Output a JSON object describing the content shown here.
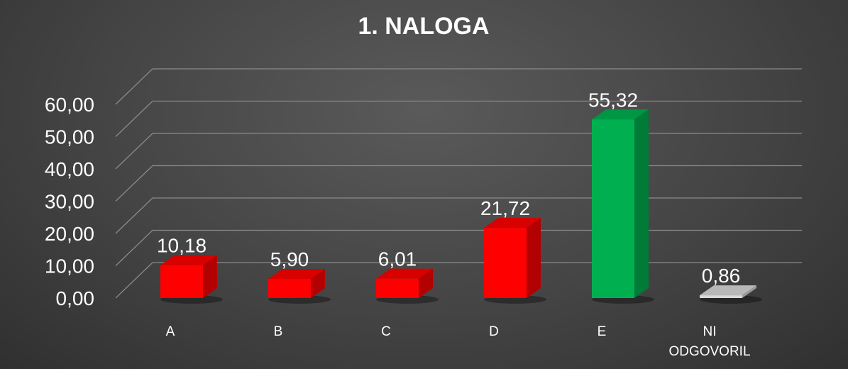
{
  "chart_data": {
    "type": "bar",
    "title": "1. NALOGA",
    "categories": [
      "A",
      "B",
      "C",
      "D",
      "E",
      "NI ODGOVORIL"
    ],
    "category_lines": [
      [
        "A"
      ],
      [
        "B"
      ],
      [
        "C"
      ],
      [
        "D"
      ],
      [
        "E"
      ],
      [
        "NI",
        "ODGOVORIL"
      ]
    ],
    "values": [
      10.18,
      5.9,
      6.01,
      21.72,
      55.32,
      0.86
    ],
    "data_labels": [
      "10,18",
      "5,90",
      "6,01",
      "21,72",
      "55,32",
      "0,86"
    ],
    "bar_colors": [
      "#ff0000",
      "#ff0000",
      "#ff0000",
      "#ff0000",
      "#00b050",
      "#d9d9d9"
    ],
    "ylim": [
      0,
      60
    ],
    "yticks": [
      0,
      10,
      20,
      30,
      40,
      50,
      60
    ],
    "ytick_labels": [
      "0,00",
      "10,00",
      "20,00",
      "30,00",
      "40,00",
      "50,00",
      "60,00"
    ],
    "xlabel": "",
    "ylabel": "",
    "grid": true,
    "style": "3d-column"
  }
}
